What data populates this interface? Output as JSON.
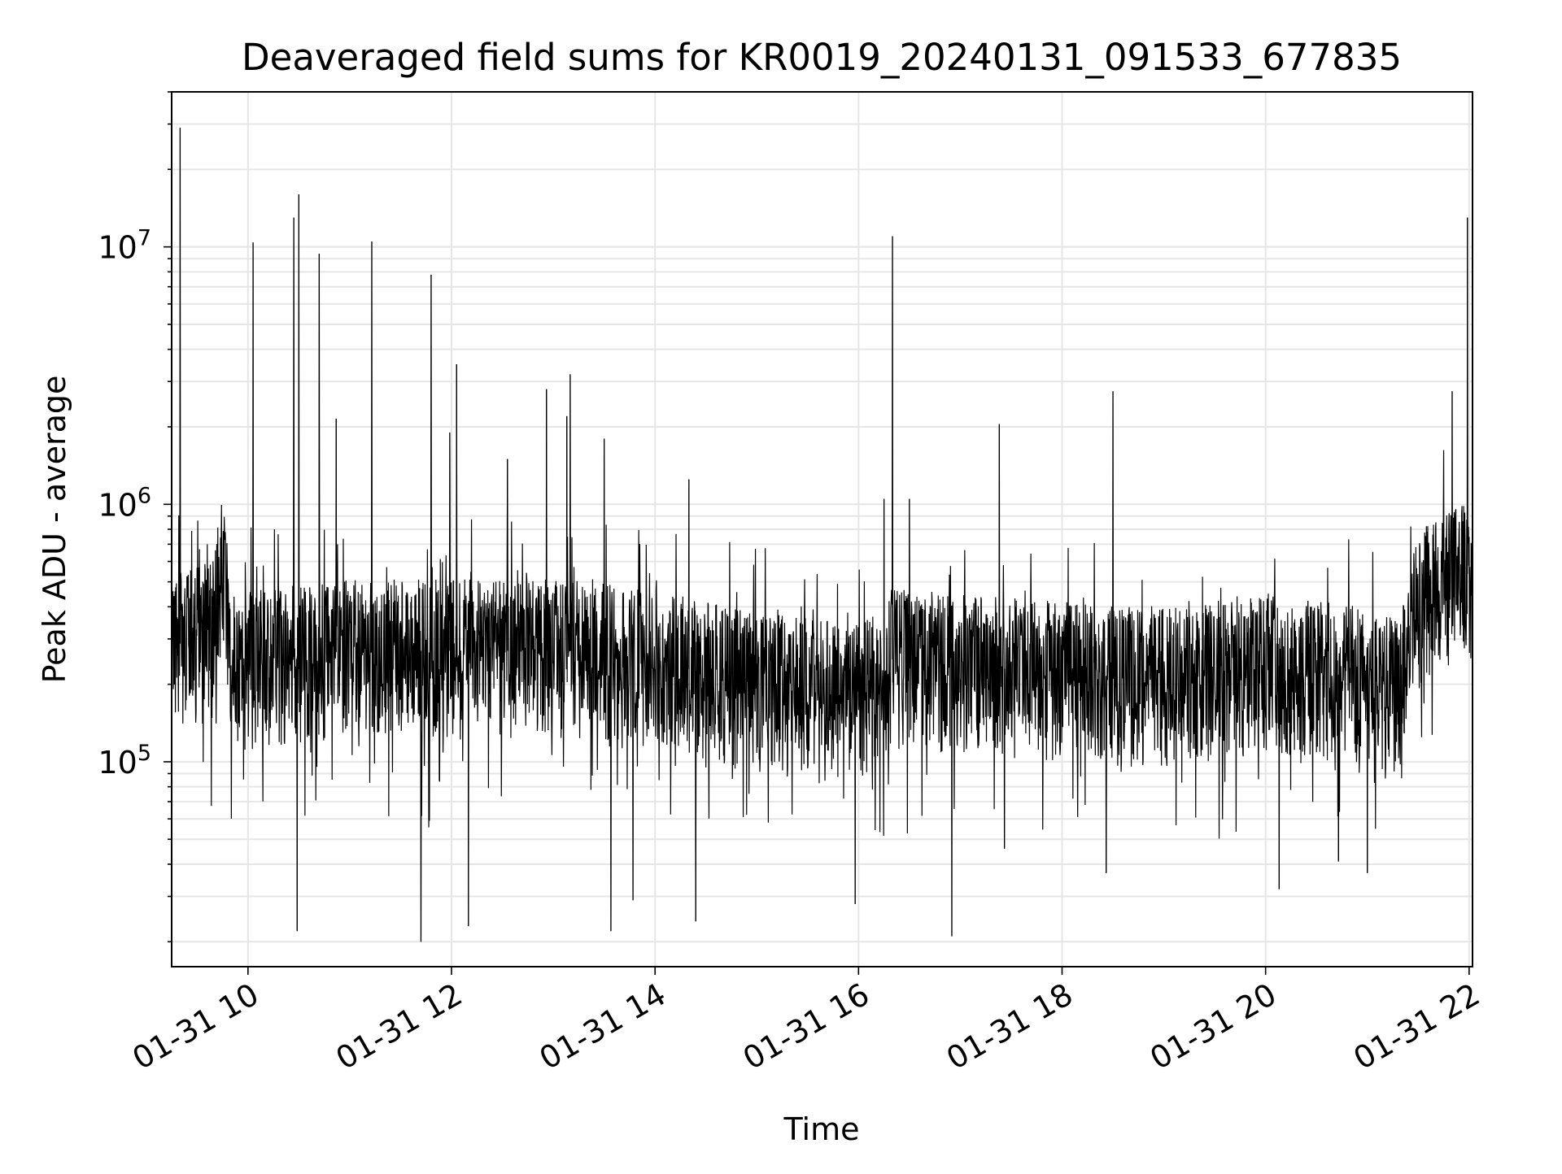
{
  "chart_data": {
    "type": "line",
    "title": "Deaveraged field sums for KR0019_20240131_091533_677835",
    "xlabel": "Time",
    "ylabel": "Peak ADU - average",
    "yscale": "log",
    "ylim": [
      16000,
      40000000
    ],
    "xlim": [
      "2024-01-31 09:15",
      "2024-01-31 22:02"
    ],
    "x_ticks": [
      "01-31 10",
      "01-31 12",
      "01-31 14",
      "01-31 16",
      "01-31 18",
      "01-31 20",
      "01-31 22"
    ],
    "y_ticks": [
      {
        "base": "10",
        "exp": "5",
        "value": 100000
      },
      {
        "base": "10",
        "exp": "6",
        "value": 1000000
      },
      {
        "base": "10",
        "exp": "7",
        "value": 10000000
      }
    ],
    "grid": true,
    "line_color": "#000000",
    "baseline_profile": [
      {
        "x": "2024-01-31 09:15",
        "y": 280000
      },
      {
        "x": "2024-01-31 09:40",
        "y": 320000
      },
      {
        "x": "2024-01-31 09:45",
        "y": 650000
      },
      {
        "x": "2024-01-31 09:50",
        "y": 240000
      },
      {
        "x": "2024-01-31 11:00",
        "y": 270000
      },
      {
        "x": "2024-01-31 13:30",
        "y": 270000
      },
      {
        "x": "2024-01-31 15:00",
        "y": 200000
      },
      {
        "x": "2024-01-31 16:00",
        "y": 180000
      },
      {
        "x": "2024-01-31 16:20",
        "y": 250000
      },
      {
        "x": "2024-01-31 18:00",
        "y": 220000
      },
      {
        "x": "2024-01-31 19:00",
        "y": 210000
      },
      {
        "x": "2024-01-31 20:00",
        "y": 240000
      },
      {
        "x": "2024-01-31 21:20",
        "y": 200000
      },
      {
        "x": "2024-01-31 21:30",
        "y": 420000
      },
      {
        "x": "2024-01-31 22:02",
        "y": 550000
      }
    ],
    "series": [
      {
        "values": [
          {
            "x": "2024-01-31 09:20",
            "y": 29000000
          },
          {
            "x": "2024-01-31 10:03",
            "y": 10400000
          },
          {
            "x": "2024-01-31 10:27",
            "y": 13000000
          },
          {
            "x": "2024-01-31 10:30",
            "y": 16000000
          },
          {
            "x": "2024-01-31 10:42",
            "y": 9400000
          },
          {
            "x": "2024-01-31 10:52",
            "y": 2150000
          },
          {
            "x": "2024-01-31 11:13",
            "y": 10500000
          },
          {
            "x": "2024-01-31 11:48",
            "y": 7800000
          },
          {
            "x": "2024-01-31 11:59",
            "y": 1900000
          },
          {
            "x": "2024-01-31 12:03",
            "y": 3500000
          },
          {
            "x": "2024-01-31 12:33",
            "y": 1500000
          },
          {
            "x": "2024-01-31 12:56",
            "y": 2800000
          },
          {
            "x": "2024-01-31 13:08",
            "y": 2200000
          },
          {
            "x": "2024-01-31 13:10",
            "y": 3200000
          },
          {
            "x": "2024-01-31 13:30",
            "y": 1800000
          },
          {
            "x": "2024-01-31 14:20",
            "y": 1250000
          },
          {
            "x": "2024-01-31 16:15",
            "y": 1050000
          },
          {
            "x": "2024-01-31 16:20",
            "y": 11000000
          },
          {
            "x": "2024-01-31 16:30",
            "y": 1050000
          },
          {
            "x": "2024-01-31 17:23",
            "y": 2050000
          },
          {
            "x": "2024-01-31 18:30",
            "y": 2750000
          },
          {
            "x": "2024-01-31 21:50",
            "y": 2750000
          },
          {
            "x": "2024-01-31 21:59",
            "y": 13000000
          },
          {
            "x": "2024-01-31 10:29",
            "y": 22000
          },
          {
            "x": "2024-01-31 11:42",
            "y": 20000
          },
          {
            "x": "2024-01-31 12:10",
            "y": 23000
          },
          {
            "x": "2024-01-31 13:34",
            "y": 22000
          },
          {
            "x": "2024-01-31 13:47",
            "y": 29000
          },
          {
            "x": "2024-01-31 14:24",
            "y": 24000
          },
          {
            "x": "2024-01-31 15:58",
            "y": 28000
          },
          {
            "x": "2024-01-31 16:55",
            "y": 21000
          },
          {
            "x": "2024-01-31 17:26",
            "y": 46000
          },
          {
            "x": "2024-01-31 18:26",
            "y": 37000
          },
          {
            "x": "2024-01-31 20:08",
            "y": 32000
          },
          {
            "x": "2024-01-31 20:43",
            "y": 41000
          },
          {
            "x": "2024-01-31 21:00",
            "y": 37000
          }
        ]
      }
    ]
  }
}
